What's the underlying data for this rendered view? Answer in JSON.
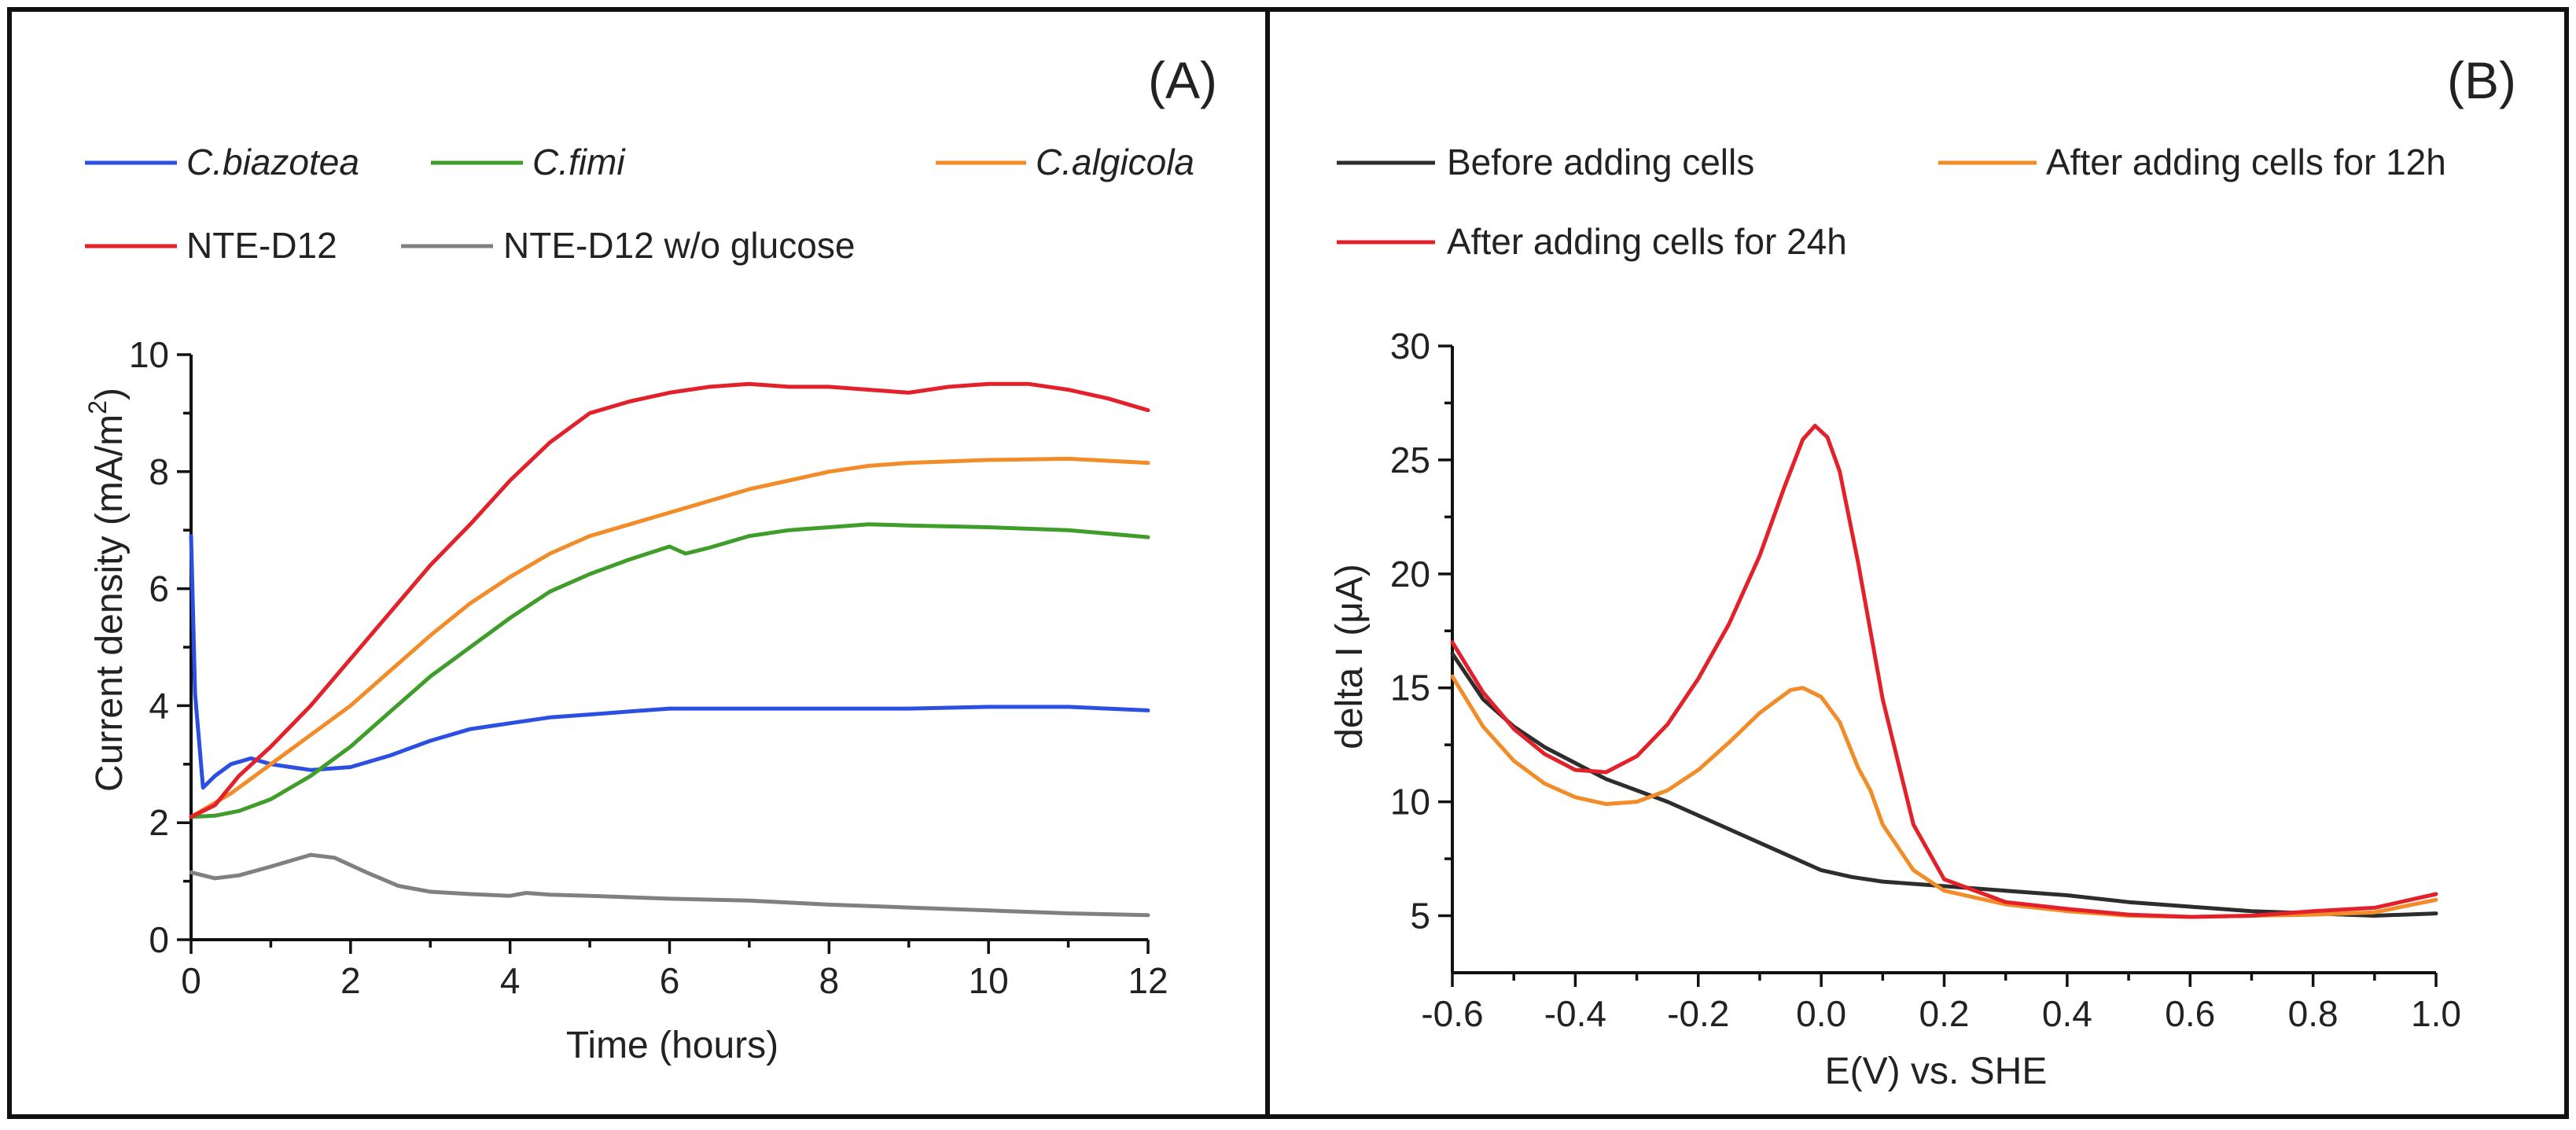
{
  "chart_data": [
    {
      "panel_label": "(A)",
      "type": "line",
      "xlabel": "Time (hours)",
      "ylabel": "Current density (mA/m",
      "ylabel_sup": "2",
      "ylabel_end": ")",
      "xlim": [
        0,
        12
      ],
      "ylim": [
        0,
        10
      ],
      "xticks": [
        0,
        2,
        4,
        6,
        8,
        10,
        12
      ],
      "yticks": [
        0,
        2,
        4,
        6,
        8,
        10
      ],
      "x_tick_labels": [
        "0",
        "2",
        "4",
        "6",
        "8",
        "10",
        "12"
      ],
      "y_tick_labels": [
        "0",
        "2",
        "4",
        "6",
        "8",
        "10"
      ],
      "grid": false,
      "legend_position": "top",
      "series": [
        {
          "name": "C.biazotea",
          "italic": true,
          "color": "#2b4fe0",
          "points": [
            [
              0,
              6.9
            ],
            [
              0.05,
              4.2
            ],
            [
              0.15,
              2.6
            ],
            [
              0.3,
              2.8
            ],
            [
              0.5,
              3.0
            ],
            [
              0.75,
              3.1
            ],
            [
              1.0,
              3.0
            ],
            [
              1.5,
              2.9
            ],
            [
              2.0,
              2.95
            ],
            [
              2.5,
              3.15
            ],
            [
              3.0,
              3.4
            ],
            [
              3.5,
              3.6
            ],
            [
              4.0,
              3.7
            ],
            [
              4.5,
              3.8
            ],
            [
              5.0,
              3.85
            ],
            [
              5.5,
              3.9
            ],
            [
              6.0,
              3.95
            ],
            [
              7.0,
              3.95
            ],
            [
              8.0,
              3.95
            ],
            [
              9.0,
              3.95
            ],
            [
              10.0,
              3.98
            ],
            [
              11.0,
              3.98
            ],
            [
              12.0,
              3.92
            ]
          ]
        },
        {
          "name": "C.fimi",
          "italic": true,
          "color": "#3f9d2a",
          "points": [
            [
              0,
              2.1
            ],
            [
              0.3,
              2.12
            ],
            [
              0.6,
              2.2
            ],
            [
              1.0,
              2.4
            ],
            [
              1.5,
              2.8
            ],
            [
              2.0,
              3.3
            ],
            [
              2.5,
              3.9
            ],
            [
              3.0,
              4.5
            ],
            [
              3.5,
              5.0
            ],
            [
              4.0,
              5.5
            ],
            [
              4.5,
              5.95
            ],
            [
              5.0,
              6.25
            ],
            [
              5.5,
              6.5
            ],
            [
              6.0,
              6.72
            ],
            [
              6.2,
              6.6
            ],
            [
              6.5,
              6.7
            ],
            [
              7.0,
              6.9
            ],
            [
              7.5,
              7.0
            ],
            [
              8.0,
              7.05
            ],
            [
              8.5,
              7.1
            ],
            [
              9.0,
              7.08
            ],
            [
              10.0,
              7.05
            ],
            [
              11.0,
              7.0
            ],
            [
              12.0,
              6.88
            ]
          ]
        },
        {
          "name": "C.algicola",
          "italic": true,
          "color": "#f28c28",
          "points": [
            [
              0,
              2.1
            ],
            [
              0.5,
              2.5
            ],
            [
              1.0,
              3.0
            ],
            [
              1.5,
              3.5
            ],
            [
              2.0,
              4.0
            ],
            [
              2.5,
              4.6
            ],
            [
              3.0,
              5.2
            ],
            [
              3.5,
              5.75
            ],
            [
              4.0,
              6.2
            ],
            [
              4.5,
              6.6
            ],
            [
              5.0,
              6.9
            ],
            [
              5.5,
              7.1
            ],
            [
              6.0,
              7.3
            ],
            [
              6.5,
              7.5
            ],
            [
              7.0,
              7.7
            ],
            [
              7.5,
              7.85
            ],
            [
              8.0,
              8.0
            ],
            [
              8.5,
              8.1
            ],
            [
              9.0,
              8.15
            ],
            [
              10.0,
              8.2
            ],
            [
              11.0,
              8.22
            ],
            [
              12.0,
              8.15
            ]
          ]
        },
        {
          "name": "NTE-D12",
          "italic": false,
          "color": "#e3212b",
          "points": [
            [
              0,
              2.1
            ],
            [
              0.3,
              2.3
            ],
            [
              0.6,
              2.8
            ],
            [
              1.0,
              3.3
            ],
            [
              1.5,
              4.0
            ],
            [
              2.0,
              4.8
            ],
            [
              2.5,
              5.6
            ],
            [
              3.0,
              6.4
            ],
            [
              3.5,
              7.1
            ],
            [
              4.0,
              7.85
            ],
            [
              4.5,
              8.5
            ],
            [
              5.0,
              9.0
            ],
            [
              5.5,
              9.2
            ],
            [
              6.0,
              9.35
            ],
            [
              6.5,
              9.45
            ],
            [
              7.0,
              9.5
            ],
            [
              7.5,
              9.45
            ],
            [
              8.0,
              9.45
            ],
            [
              8.5,
              9.4
            ],
            [
              9.0,
              9.35
            ],
            [
              9.5,
              9.45
            ],
            [
              10.0,
              9.5
            ],
            [
              10.5,
              9.5
            ],
            [
              11.0,
              9.4
            ],
            [
              11.5,
              9.25
            ],
            [
              12.0,
              9.05
            ]
          ]
        },
        {
          "name": "NTE-D12 w/o glucose",
          "italic": false,
          "color": "#808080",
          "points": [
            [
              0,
              1.15
            ],
            [
              0.3,
              1.05
            ],
            [
              0.6,
              1.1
            ],
            [
              1.0,
              1.25
            ],
            [
              1.5,
              1.45
            ],
            [
              1.8,
              1.4
            ],
            [
              2.2,
              1.15
            ],
            [
              2.6,
              0.92
            ],
            [
              3.0,
              0.82
            ],
            [
              3.5,
              0.78
            ],
            [
              4.0,
              0.75
            ],
            [
              4.2,
              0.8
            ],
            [
              4.5,
              0.77
            ],
            [
              5.0,
              0.75
            ],
            [
              6.0,
              0.7
            ],
            [
              7.0,
              0.67
            ],
            [
              8.0,
              0.6
            ],
            [
              9.0,
              0.55
            ],
            [
              10.0,
              0.5
            ],
            [
              11.0,
              0.45
            ],
            [
              12.0,
              0.42
            ]
          ]
        }
      ]
    },
    {
      "panel_label": "(B)",
      "type": "line",
      "xlabel": "E(V) vs. SHE",
      "ylabel": "delta I (μA)",
      "xlim": [
        -0.6,
        1.0
      ],
      "ylim": [
        2.5,
        30
      ],
      "xticks": [
        -0.6,
        -0.4,
        -0.2,
        0.0,
        0.2,
        0.4,
        0.6,
        0.8,
        1.0
      ],
      "yticks": [
        5,
        10,
        15,
        20,
        25,
        30
      ],
      "x_tick_labels": [
        "-0.6",
        "-0.4",
        "-0.2",
        "0.0",
        "0.2",
        "0.4",
        "0.6",
        "0.8",
        "1.0"
      ],
      "y_tick_labels": [
        "5",
        "10",
        "15",
        "20",
        "25",
        "30"
      ],
      "grid": false,
      "legend_position": "top",
      "series": [
        {
          "name": "Before adding cells",
          "color": "#2d2d2d",
          "points": [
            [
              -0.6,
              16.5
            ],
            [
              -0.55,
              14.5
            ],
            [
              -0.5,
              13.3
            ],
            [
              -0.45,
              12.4
            ],
            [
              -0.4,
              11.7
            ],
            [
              -0.35,
              11.0
            ],
            [
              -0.3,
              10.5
            ],
            [
              -0.25,
              10.0
            ],
            [
              -0.2,
              9.4
            ],
            [
              -0.15,
              8.8
            ],
            [
              -0.1,
              8.2
            ],
            [
              -0.05,
              7.6
            ],
            [
              0.0,
              7.0
            ],
            [
              0.05,
              6.7
            ],
            [
              0.1,
              6.5
            ],
            [
              0.2,
              6.3
            ],
            [
              0.3,
              6.1
            ],
            [
              0.4,
              5.9
            ],
            [
              0.5,
              5.6
            ],
            [
              0.6,
              5.4
            ],
            [
              0.7,
              5.2
            ],
            [
              0.8,
              5.1
            ],
            [
              0.9,
              5.0
            ],
            [
              1.0,
              5.1
            ]
          ]
        },
        {
          "name": "After adding cells for 12h",
          "color": "#f28c28",
          "points": [
            [
              -0.6,
              15.5
            ],
            [
              -0.55,
              13.3
            ],
            [
              -0.5,
              11.8
            ],
            [
              -0.45,
              10.8
            ],
            [
              -0.4,
              10.2
            ],
            [
              -0.35,
              9.9
            ],
            [
              -0.3,
              10.0
            ],
            [
              -0.25,
              10.5
            ],
            [
              -0.2,
              11.4
            ],
            [
              -0.15,
              12.6
            ],
            [
              -0.1,
              13.9
            ],
            [
              -0.05,
              14.9
            ],
            [
              -0.03,
              15.0
            ],
            [
              0.0,
              14.6
            ],
            [
              0.03,
              13.5
            ],
            [
              0.06,
              11.5
            ],
            [
              0.08,
              10.5
            ],
            [
              0.1,
              9.0
            ],
            [
              0.15,
              7.0
            ],
            [
              0.2,
              6.1
            ],
            [
              0.3,
              5.5
            ],
            [
              0.4,
              5.2
            ],
            [
              0.5,
              5.0
            ],
            [
              0.6,
              4.95
            ],
            [
              0.7,
              5.0
            ],
            [
              0.8,
              5.05
            ],
            [
              0.9,
              5.15
            ],
            [
              1.0,
              5.7
            ]
          ]
        },
        {
          "name": "After adding cells for 24h",
          "color": "#e3212b",
          "points": [
            [
              -0.6,
              17.0
            ],
            [
              -0.55,
              14.8
            ],
            [
              -0.5,
              13.2
            ],
            [
              -0.45,
              12.1
            ],
            [
              -0.4,
              11.4
            ],
            [
              -0.35,
              11.3
            ],
            [
              -0.3,
              12.0
            ],
            [
              -0.25,
              13.4
            ],
            [
              -0.2,
              15.4
            ],
            [
              -0.15,
              17.8
            ],
            [
              -0.1,
              20.8
            ],
            [
              -0.06,
              23.8
            ],
            [
              -0.03,
              25.9
            ],
            [
              -0.01,
              26.5
            ],
            [
              0.01,
              26.0
            ],
            [
              0.03,
              24.5
            ],
            [
              0.06,
              20.5
            ],
            [
              0.1,
              14.5
            ],
            [
              0.15,
              9.0
            ],
            [
              0.2,
              6.6
            ],
            [
              0.3,
              5.6
            ],
            [
              0.4,
              5.3
            ],
            [
              0.5,
              5.05
            ],
            [
              0.6,
              4.95
            ],
            [
              0.7,
              5.0
            ],
            [
              0.8,
              5.2
            ],
            [
              0.9,
              5.35
            ],
            [
              1.0,
              5.95
            ]
          ]
        }
      ]
    }
  ]
}
